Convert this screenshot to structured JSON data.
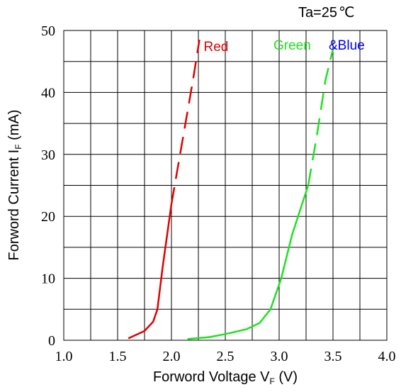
{
  "chart_data": {
    "type": "line",
    "annotation": "Ta=25",
    "annotation_symbol": "℃",
    "xlabel": "Forword Voltage V",
    "xlabel_sub": "F",
    "xlabel_unit": " (V)",
    "ylabel": "Forword Current I",
    "ylabel_sub": "F",
    "ylabel_unit": "  (mA)",
    "xlim": [
      1.0,
      4.0
    ],
    "ylim": [
      0,
      50
    ],
    "xticks": [
      "1.0",
      "1.5",
      "2.0",
      "2.5",
      "3.0",
      "3.5",
      "4.0"
    ],
    "yticks": [
      "0",
      "10",
      "20",
      "30",
      "40",
      "50"
    ],
    "grid": true,
    "series": [
      {
        "name": "Red",
        "color": "#e00000",
        "solid": [
          [
            1.6,
            0.3
          ],
          [
            1.75,
            1.5
          ],
          [
            1.83,
            3.0
          ],
          [
            1.87,
            5.0
          ],
          [
            1.92,
            12.0
          ],
          [
            2.0,
            22.0
          ]
        ],
        "dashed": [
          [
            2.0,
            22.0
          ],
          [
            2.1,
            32.0
          ],
          [
            2.2,
            42.0
          ],
          [
            2.26,
            48.5
          ]
        ]
      },
      {
        "name": "Green",
        "name2": "&Blue",
        "color": "#20e020",
        "color2": "#0000ee",
        "solid": [
          [
            2.15,
            0.2
          ],
          [
            2.35,
            0.5
          ],
          [
            2.5,
            1.0
          ],
          [
            2.7,
            1.8
          ],
          [
            2.82,
            2.8
          ],
          [
            2.92,
            5.0
          ],
          [
            3.02,
            10.0
          ],
          [
            3.12,
            17.0
          ],
          [
            3.27,
            25.0
          ]
        ],
        "dashed": [
          [
            3.27,
            25.0
          ],
          [
            3.35,
            33.0
          ],
          [
            3.43,
            42.0
          ],
          [
            3.5,
            47.0
          ]
        ]
      }
    ]
  }
}
